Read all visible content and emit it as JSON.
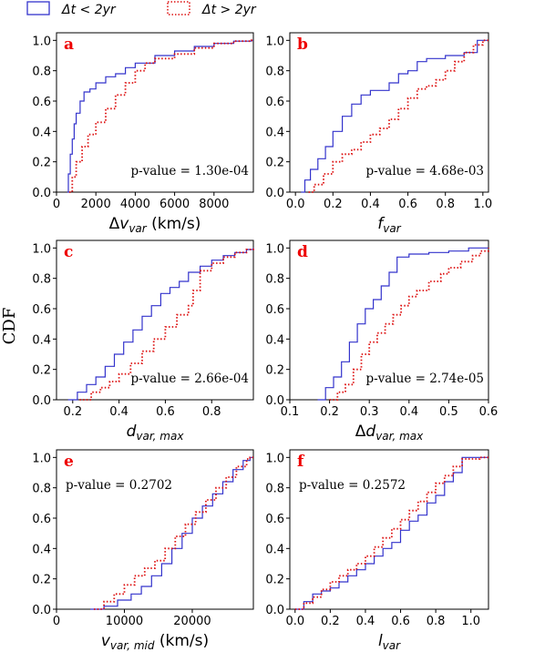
{
  "figure": {
    "ylabel": "CDF",
    "legend": [
      {
        "label": "Δt < 2yr",
        "color": "#3333cc",
        "dash": "solid"
      },
      {
        "label": "Δt > 2yr",
        "color": "#dd1111",
        "dash": "dotted"
      }
    ]
  },
  "chart_data": [
    {
      "type": "line",
      "panel": "a",
      "xlabel": "Δv",
      "xlabel_sub": "var",
      "xlabel_unit": " (km/s)",
      "annotation": "p-value = 1.30e-04",
      "annotation_pos": "lower-right",
      "xlim": [
        0,
        10000
      ],
      "ylim": [
        0,
        1.05
      ],
      "xticks": [
        0,
        2000,
        4000,
        6000,
        8000
      ],
      "xtick_labels": [
        "0",
        "2000",
        "4000",
        "6000",
        "8000"
      ],
      "yticks": [
        0,
        0.2,
        0.4,
        0.6,
        0.8,
        1.0
      ],
      "ytick_labels": [
        "0.0",
        "0.2",
        "0.4",
        "0.6",
        "0.8",
        "1.0"
      ],
      "series": [
        {
          "name": "Δt < 2yr",
          "x": [
            550,
            600,
            700,
            800,
            900,
            1000,
            1200,
            1400,
            1700,
            2000,
            2500,
            3000,
            3500,
            4000,
            5000,
            6000,
            7000,
            8000,
            9000,
            9900
          ],
          "y": [
            0,
            0.12,
            0.25,
            0.35,
            0.45,
            0.52,
            0.6,
            0.66,
            0.68,
            0.72,
            0.76,
            0.78,
            0.82,
            0.85,
            0.9,
            0.93,
            0.96,
            0.98,
            0.995,
            1
          ]
        },
        {
          "name": "Δt > 2yr",
          "x": [
            650,
            800,
            1000,
            1300,
            1600,
            2000,
            2500,
            3000,
            3500,
            4000,
            4500,
            5000,
            6000,
            7000,
            8000,
            9000,
            9900
          ],
          "y": [
            0,
            0.1,
            0.2,
            0.3,
            0.38,
            0.46,
            0.55,
            0.64,
            0.72,
            0.8,
            0.85,
            0.88,
            0.91,
            0.95,
            0.98,
            0.995,
            1
          ]
        }
      ]
    },
    {
      "type": "line",
      "panel": "b",
      "xlabel": "f",
      "xlabel_sub": "var",
      "xlabel_unit": "",
      "annotation": "p-value = 4.68e-03",
      "annotation_pos": "lower-right",
      "xlim": [
        -0.03,
        1.03
      ],
      "ylim": [
        0,
        1.05
      ],
      "xticks": [
        0,
        0.2,
        0.4,
        0.6,
        0.8,
        1.0
      ],
      "xtick_labels": [
        "0.0",
        "0.2",
        "0.4",
        "0.6",
        "0.8",
        "1.0"
      ],
      "yticks": [
        0,
        0.2,
        0.4,
        0.6,
        0.8,
        1.0
      ],
      "ytick_labels": [
        "0.0",
        "0.2",
        "0.4",
        "0.6",
        "0.8",
        "1.0"
      ],
      "series": [
        {
          "name": "Δt < 2yr",
          "x": [
            0.03,
            0.05,
            0.08,
            0.12,
            0.16,
            0.2,
            0.25,
            0.3,
            0.35,
            0.4,
            0.45,
            0.5,
            0.55,
            0.6,
            0.65,
            0.7,
            0.8,
            0.9,
            0.97,
            1.0
          ],
          "y": [
            0,
            0.08,
            0.15,
            0.22,
            0.3,
            0.4,
            0.5,
            0.58,
            0.64,
            0.67,
            0.67,
            0.72,
            0.78,
            0.8,
            0.86,
            0.88,
            0.9,
            0.92,
            1.0,
            1.0
          ]
        },
        {
          "name": "Δt > 2yr",
          "x": [
            0.07,
            0.1,
            0.15,
            0.2,
            0.25,
            0.3,
            0.35,
            0.4,
            0.45,
            0.5,
            0.55,
            0.6,
            0.65,
            0.7,
            0.75,
            0.8,
            0.85,
            0.9,
            0.95,
            1.0
          ],
          "y": [
            0,
            0.05,
            0.12,
            0.2,
            0.25,
            0.28,
            0.33,
            0.38,
            0.42,
            0.48,
            0.55,
            0.62,
            0.68,
            0.7,
            0.74,
            0.8,
            0.86,
            0.92,
            0.97,
            1.0
          ]
        }
      ]
    },
    {
      "type": "line",
      "panel": "c",
      "xlabel": "d",
      "xlabel_sub": "var, max",
      "xlabel_unit": "",
      "annotation": "p-value = 2.66e-04",
      "annotation_pos": "lower-right",
      "xlim": [
        0.13,
        0.98
      ],
      "ylim": [
        0,
        1.05
      ],
      "xticks": [
        0.2,
        0.4,
        0.6,
        0.8
      ],
      "xtick_labels": [
        "0.2",
        "0.4",
        "0.6",
        "0.8"
      ],
      "yticks": [
        0,
        0.2,
        0.4,
        0.6,
        0.8,
        1.0
      ],
      "ytick_labels": [
        "0.0",
        "0.2",
        "0.4",
        "0.6",
        "0.8",
        "1.0"
      ],
      "series": [
        {
          "name": "Δt < 2yr",
          "x": [
            0.18,
            0.22,
            0.26,
            0.3,
            0.34,
            0.38,
            0.42,
            0.46,
            0.5,
            0.54,
            0.58,
            0.62,
            0.66,
            0.7,
            0.75,
            0.8,
            0.85,
            0.9,
            0.95,
            0.98
          ],
          "y": [
            0,
            0.05,
            0.1,
            0.15,
            0.22,
            0.3,
            0.38,
            0.46,
            0.55,
            0.62,
            0.7,
            0.74,
            0.78,
            0.84,
            0.88,
            0.92,
            0.95,
            0.97,
            0.99,
            1.0
          ]
        },
        {
          "name": "Δt > 2yr",
          "x": [
            0.23,
            0.28,
            0.32,
            0.36,
            0.4,
            0.45,
            0.5,
            0.55,
            0.6,
            0.65,
            0.7,
            0.72,
            0.75,
            0.8,
            0.85,
            0.9,
            0.95,
            0.98
          ],
          "y": [
            0,
            0.05,
            0.08,
            0.12,
            0.17,
            0.24,
            0.32,
            0.4,
            0.48,
            0.56,
            0.62,
            0.72,
            0.85,
            0.9,
            0.94,
            0.97,
            0.99,
            1.0
          ]
        }
      ]
    },
    {
      "type": "line",
      "panel": "d",
      "xlabel": "Δd",
      "xlabel_sub": "var, max",
      "xlabel_unit": "",
      "annotation": "p-value = 2.74e-05",
      "annotation_pos": "lower-right",
      "xlim": [
        0.1,
        0.6
      ],
      "ylim": [
        0,
        1.05
      ],
      "xticks": [
        0.1,
        0.2,
        0.3,
        0.4,
        0.5,
        0.6
      ],
      "xtick_labels": [
        "0.1",
        "0.2",
        "0.3",
        "0.4",
        "0.5",
        "0.6"
      ],
      "yticks": [
        0,
        0.2,
        0.4,
        0.6,
        0.8,
        1.0
      ],
      "ytick_labels": [
        "0.0",
        "0.2",
        "0.4",
        "0.6",
        "0.8",
        "1.0"
      ],
      "series": [
        {
          "name": "Δt < 2yr",
          "x": [
            0.17,
            0.19,
            0.21,
            0.23,
            0.25,
            0.27,
            0.29,
            0.31,
            0.33,
            0.35,
            0.37,
            0.4,
            0.45,
            0.5,
            0.55,
            0.6
          ],
          "y": [
            0,
            0.08,
            0.15,
            0.25,
            0.38,
            0.5,
            0.6,
            0.66,
            0.75,
            0.84,
            0.94,
            0.96,
            0.97,
            0.98,
            1.0,
            1.0
          ]
        },
        {
          "name": "Δt > 2yr",
          "x": [
            0.2,
            0.22,
            0.24,
            0.26,
            0.28,
            0.3,
            0.32,
            0.34,
            0.36,
            0.38,
            0.4,
            0.42,
            0.45,
            0.48,
            0.5,
            0.53,
            0.56,
            0.58,
            0.6
          ],
          "y": [
            0,
            0.05,
            0.1,
            0.2,
            0.3,
            0.38,
            0.44,
            0.5,
            0.56,
            0.62,
            0.68,
            0.72,
            0.78,
            0.83,
            0.87,
            0.91,
            0.95,
            0.98,
            1.0
          ]
        }
      ]
    },
    {
      "type": "line",
      "panel": "e",
      "xlabel": "v",
      "xlabel_sub": "var, mid",
      "xlabel_unit": " (km/s)",
      "annotation": "p-value = 0.2702",
      "annotation_pos": "upper-left",
      "xlim": [
        0,
        29000
      ],
      "ylim": [
        0,
        1.05
      ],
      "xticks": [
        0,
        10000,
        20000
      ],
      "xtick_labels": [
        "0",
        "10000",
        "20000"
      ],
      "yticks": [
        0,
        0.2,
        0.4,
        0.6,
        0.8,
        1.0
      ],
      "ytick_labels": [
        "0.0",
        "0.2",
        "0.4",
        "0.6",
        "0.8",
        "1.0"
      ],
      "series": [
        {
          "name": "Δt < 2yr",
          "x": [
            5000,
            7000,
            9000,
            11000,
            12500,
            14000,
            15500,
            17000,
            18500,
            20000,
            21500,
            23000,
            24500,
            26000,
            27500,
            28500
          ],
          "y": [
            0,
            0.02,
            0.06,
            0.1,
            0.15,
            0.22,
            0.3,
            0.4,
            0.5,
            0.6,
            0.68,
            0.76,
            0.84,
            0.92,
            0.98,
            1.0
          ]
        },
        {
          "name": "Δt > 2yr",
          "x": [
            5500,
            7000,
            8500,
            10000,
            11500,
            13000,
            14500,
            16000,
            17500,
            19000,
            20500,
            22000,
            23500,
            25000,
            26500,
            28000,
            28500
          ],
          "y": [
            0,
            0.05,
            0.1,
            0.16,
            0.22,
            0.27,
            0.32,
            0.4,
            0.48,
            0.56,
            0.64,
            0.72,
            0.8,
            0.87,
            0.94,
            0.99,
            1.0
          ]
        }
      ]
    },
    {
      "type": "line",
      "panel": "f",
      "xlabel": "l",
      "xlabel_sub": "var",
      "xlabel_unit": "",
      "annotation": "p-value = 0.2572",
      "annotation_pos": "upper-left",
      "xlim": [
        -0.03,
        1.1
      ],
      "ylim": [
        0,
        1.05
      ],
      "xticks": [
        0,
        0.2,
        0.4,
        0.6,
        0.8,
        1.0
      ],
      "xtick_labels": [
        "0.0",
        "0.2",
        "0.4",
        "0.6",
        "0.8",
        "1.0"
      ],
      "yticks": [
        0,
        0.2,
        0.4,
        0.6,
        0.8,
        1.0
      ],
      "ytick_labels": [
        "0.0",
        "0.2",
        "0.4",
        "0.6",
        "0.8",
        "1.0"
      ],
      "series": [
        {
          "name": "Δt < 2yr",
          "x": [
            0.0,
            0.05,
            0.1,
            0.15,
            0.2,
            0.25,
            0.3,
            0.35,
            0.4,
            0.45,
            0.5,
            0.55,
            0.6,
            0.65,
            0.7,
            0.75,
            0.8,
            0.85,
            0.9,
            0.95,
            1.0,
            1.05
          ],
          "y": [
            0,
            0.05,
            0.1,
            0.12,
            0.14,
            0.18,
            0.22,
            0.26,
            0.3,
            0.35,
            0.4,
            0.44,
            0.52,
            0.58,
            0.62,
            0.7,
            0.75,
            0.84,
            0.9,
            1.0,
            1.0,
            1.0
          ]
        },
        {
          "name": "Δt > 2yr",
          "x": [
            0.0,
            0.05,
            0.1,
            0.15,
            0.2,
            0.25,
            0.3,
            0.35,
            0.4,
            0.45,
            0.5,
            0.55,
            0.6,
            0.65,
            0.7,
            0.75,
            0.8,
            0.85,
            0.9,
            0.95,
            1.05
          ],
          "y": [
            0,
            0.04,
            0.08,
            0.13,
            0.18,
            0.22,
            0.26,
            0.3,
            0.35,
            0.41,
            0.47,
            0.53,
            0.59,
            0.65,
            0.71,
            0.77,
            0.83,
            0.88,
            0.94,
            0.99,
            1.0
          ]
        }
      ]
    }
  ]
}
